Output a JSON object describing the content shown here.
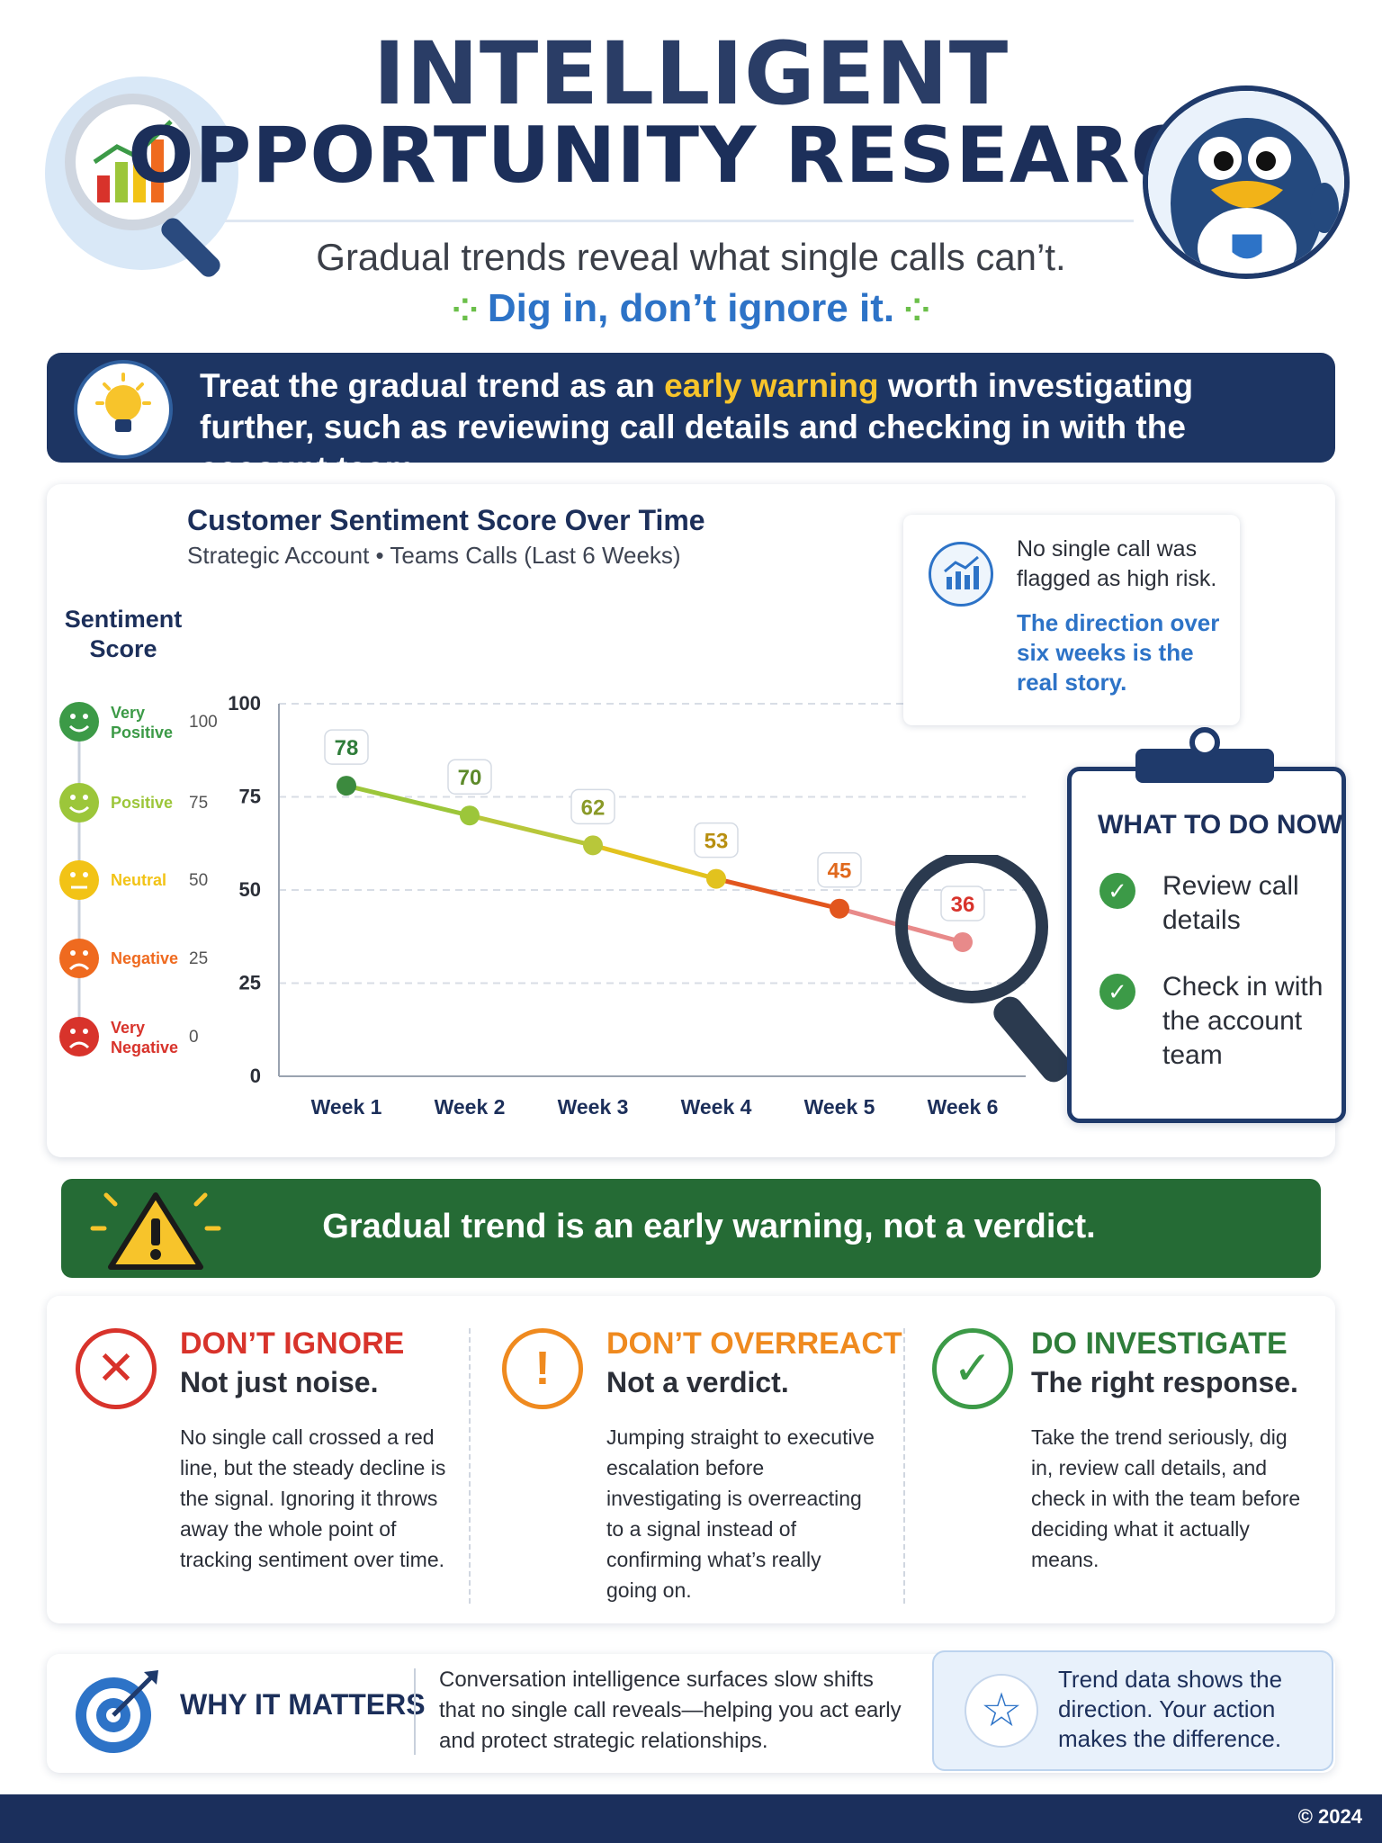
{
  "header": {
    "title_line1": "INTELLIGENT",
    "title_line2": "OPPORTUNITY RESEARCH",
    "subtitle": "Gradual trends reveal what single calls can’t.",
    "tagline": "Dig in, don’t ignore it."
  },
  "banner": {
    "text_before": "Treat the gradual trend as an ",
    "highlight": "early warning",
    "text_after": " worth investigating further, such as reviewing call details and checking in with the account team."
  },
  "chart_card": {
    "title": "Customer Sentiment Score Over Time",
    "subtitle": "Strategic Account • Teams Calls (Last 6 Weeks)",
    "y_axis_title": "Sentiment Score",
    "scale_legend": [
      {
        "label_line1": "Very",
        "label_line2": "Positive",
        "value": "100",
        "color": "#3c9a47"
      },
      {
        "label_line1": "Positive",
        "label_line2": "",
        "value": "75",
        "color": "#9cc63a"
      },
      {
        "label_line1": "Neutral",
        "label_line2": "",
        "value": "50",
        "color": "#f2c316"
      },
      {
        "label_line1": "Negative",
        "label_line2": "",
        "value": "25",
        "color": "#ef6a1f"
      },
      {
        "label_line1": "Very",
        "label_line2": "Negative",
        "value": "0",
        "color": "#d8332b"
      }
    ],
    "callout": {
      "text": "No single call was flagged as high risk.",
      "emphasis": "The direction over six weeks is the real story."
    }
  },
  "chart_data": {
    "type": "line",
    "categories": [
      "Week 1",
      "Week 2",
      "Week 3",
      "Week 4",
      "Week 5",
      "Week 6"
    ],
    "values": [
      78,
      70,
      62,
      53,
      45,
      36
    ],
    "point_colors": [
      "#3c8a3e",
      "#9cc63a",
      "#b8c73a",
      "#e2c21e",
      "#e2561e",
      "#e88a8a"
    ],
    "label_colors": [
      "#2f7d3a",
      "#5d8a2a",
      "#8a9a28",
      "#b88f10",
      "#e0691d",
      "#d8332b"
    ],
    "y_ticks": [
      "0",
      "25",
      "50",
      "75",
      "100"
    ],
    "ylim": [
      0,
      100
    ],
    "grid": true
  },
  "todo": {
    "title": "WHAT TO DO NOW",
    "items": [
      {
        "text": "Review call details"
      },
      {
        "text": "Check in with the account team"
      }
    ]
  },
  "warning": {
    "text": "Gradual trend is an early warning, not a verdict."
  },
  "columns": [
    {
      "heading": "DON’T IGNORE",
      "subheading": "Not just noise.",
      "body": "No single call crossed a red line, but the steady decline is the signal. Ignoring it throws away the whole point of tracking sentiment over time.",
      "color": "#d8332b",
      "icon": "✕"
    },
    {
      "heading": "DON’T OVERREACT",
      "subheading": "Not a verdict.",
      "body": "Jumping straight to executive escalation before investigating is overreacting to a signal instead of confirming what’s really going on.",
      "color": "#ef8a1f",
      "icon": "!"
    },
    {
      "heading": "DO INVESTIGATE",
      "subheading": "The right response.",
      "body": "Take the trend seriously, dig in, review call details, and check in with the team before deciding what it actually means.",
      "color": "#3c9a47",
      "icon": "✓"
    }
  ],
  "why": {
    "title": "WHY IT MATTERS",
    "body": "Conversation intelligence surfaces slow shifts that no single call reveals—helping you act early and protect strategic relationships.",
    "trend_note": "Trend data shows the direction. Your action makes the difference."
  },
  "footer": {
    "copyright": "© 2024"
  }
}
